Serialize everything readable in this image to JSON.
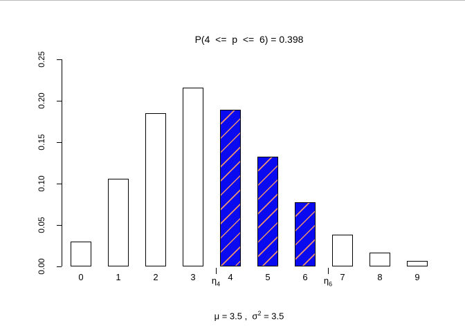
{
  "title_block": {
    "title": "P(4  <=  p  <=  6) = 0.398"
  },
  "footer": {
    "pre": "μ = 3.5 ,  σ",
    "sup": "2",
    "post": " = 3.5"
  },
  "chart_data": {
    "type": "bar",
    "title": "P(4  <=  p  <=  6) = 0.398",
    "xlabel": "",
    "ylabel": "",
    "categories": [
      "0",
      "1",
      "2",
      "3",
      "4",
      "5",
      "6",
      "7",
      "8",
      "9"
    ],
    "values": [
      0.0302,
      0.1057,
      0.185,
      0.2158,
      0.1888,
      0.1322,
      0.0771,
      0.0385,
      0.0169,
      0.0066
    ],
    "highlighted_categories": [
      4,
      5,
      6
    ],
    "ylim": [
      0,
      0.25
    ],
    "yticks": [
      "0.00",
      "0.05",
      "0.10",
      "0.15",
      "0.20",
      "0.25"
    ],
    "grid": false,
    "legend": "none",
    "bar_fill_default": "#ffffff",
    "bar_fill_highlight": "#0a0af0",
    "hatch_color": "#ee9270",
    "border_color": "#000000",
    "annotations": [
      {
        "label_base": "η",
        "label_sub": "4",
        "position": 4
      },
      {
        "label_base": "η",
        "label_sub": "6",
        "position": 7
      }
    ],
    "caption": "μ = 3.5 ,  σ² = 3.5"
  }
}
